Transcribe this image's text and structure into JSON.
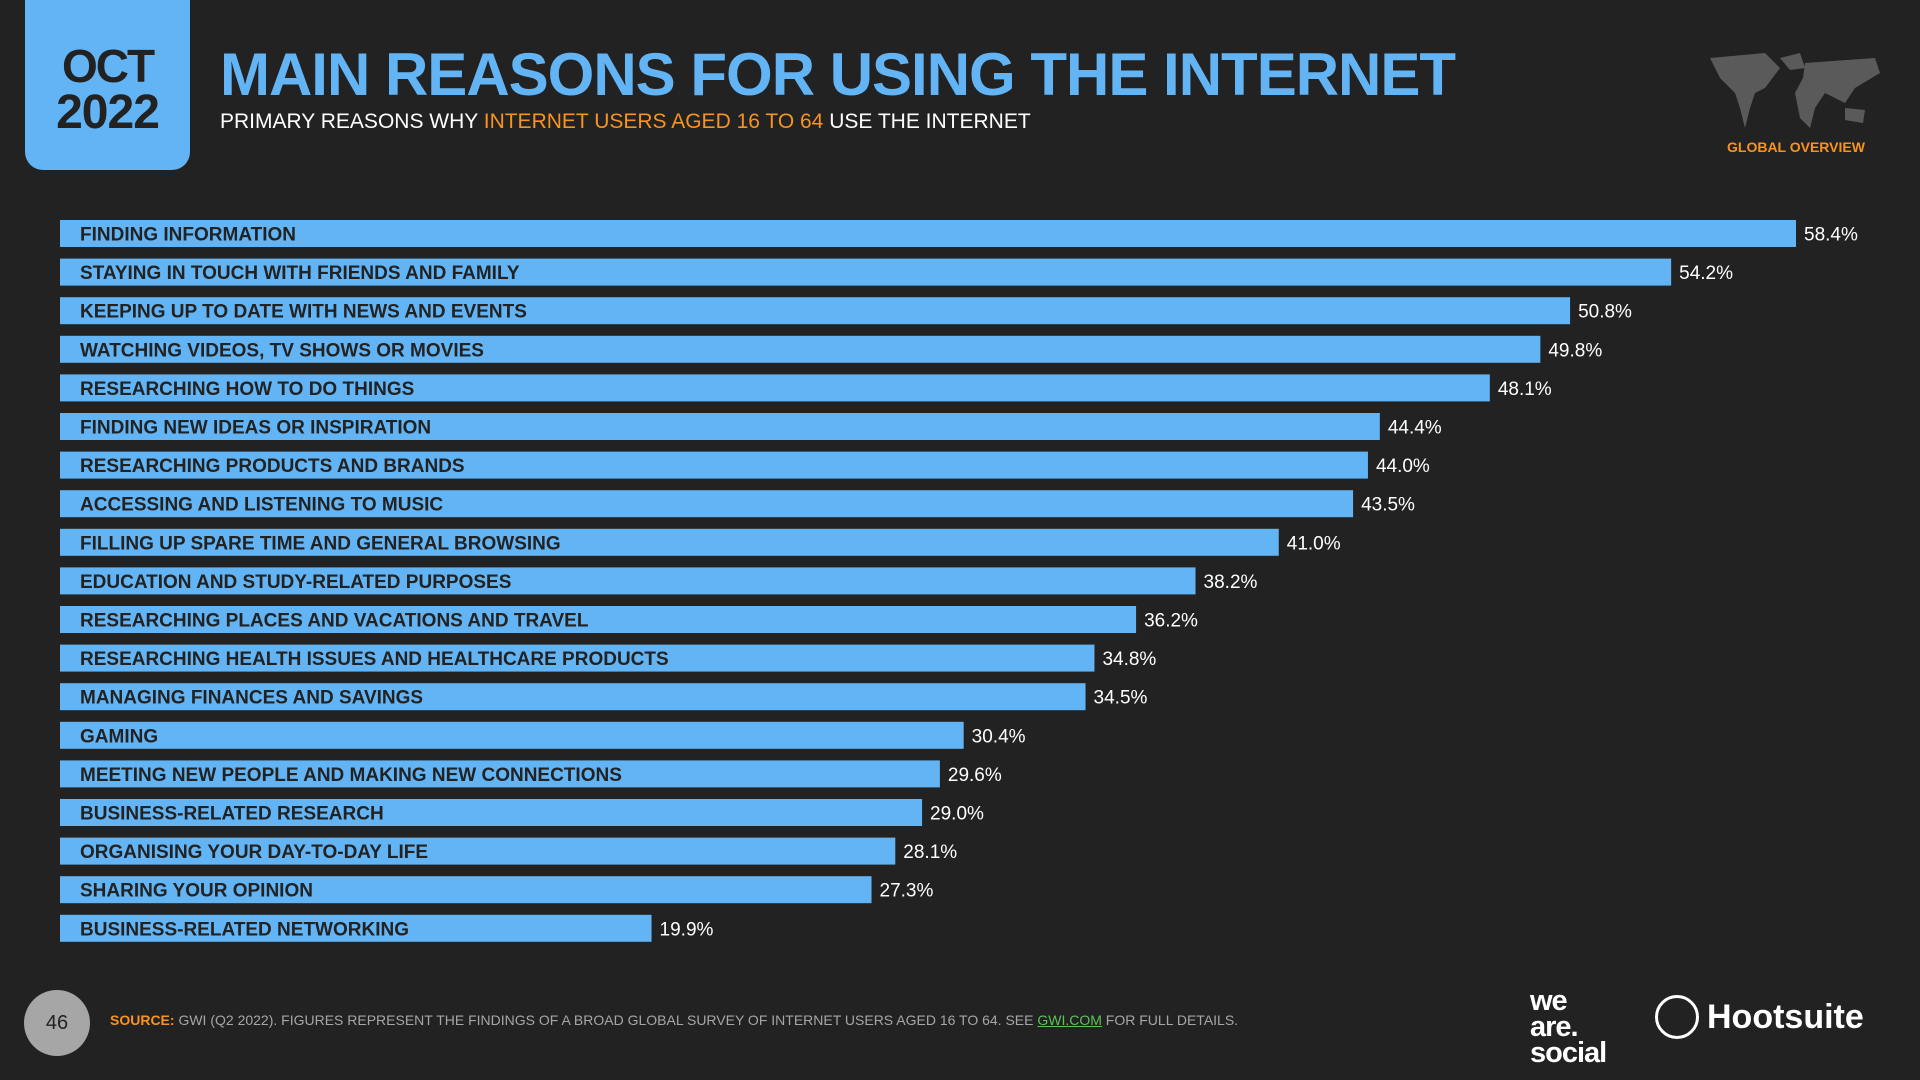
{
  "header": {
    "month": "OCT",
    "year": "2022",
    "title": "MAIN REASONS FOR USING THE INTERNET",
    "subtitle_pre": "PRIMARY REASONS WHY ",
    "subtitle_highlight": "INTERNET USERS AGED 16 TO 64",
    "subtitle_post": " USE THE INTERNET",
    "region": "GLOBAL OVERVIEW"
  },
  "colors": {
    "bar": "#62b4f5",
    "accent": "#f7931e",
    "background": "#222222"
  },
  "chart_data": {
    "type": "bar",
    "orientation": "horizontal",
    "unit": "%",
    "categories": [
      "FINDING INFORMATION",
      "STAYING IN TOUCH WITH FRIENDS AND FAMILY",
      "KEEPING UP TO DATE WITH NEWS AND EVENTS",
      "WATCHING VIDEOS, TV SHOWS OR MOVIES",
      "RESEARCHING HOW TO DO THINGS",
      "FINDING NEW IDEAS OR INSPIRATION",
      "RESEARCHING PRODUCTS AND BRANDS",
      "ACCESSING AND LISTENING TO MUSIC",
      "FILLING UP SPARE TIME AND GENERAL BROWSING",
      "EDUCATION AND STUDY-RELATED PURPOSES",
      "RESEARCHING PLACES AND VACATIONS AND TRAVEL",
      "RESEARCHING HEALTH ISSUES AND HEALTHCARE PRODUCTS",
      "MANAGING FINANCES AND SAVINGS",
      "GAMING",
      "MEETING NEW PEOPLE AND MAKING NEW CONNECTIONS",
      "BUSINESS-RELATED RESEARCH",
      "ORGANISING YOUR DAY-TO-DAY LIFE",
      "SHARING YOUR OPINION",
      "BUSINESS-RELATED NETWORKING"
    ],
    "values": [
      58.4,
      54.2,
      50.8,
      49.8,
      48.1,
      44.4,
      44.0,
      43.5,
      41.0,
      38.2,
      36.2,
      34.8,
      34.5,
      30.4,
      29.6,
      29.0,
      28.1,
      27.3,
      19.9
    ],
    "labels": [
      "58.4%",
      "54.2%",
      "50.8%",
      "49.8%",
      "48.1%",
      "44.4%",
      "44.0%",
      "43.5%",
      "41.0%",
      "38.2%",
      "36.2%",
      "34.8%",
      "34.5%",
      "30.4%",
      "29.6%",
      "29.0%",
      "28.1%",
      "27.3%",
      "19.9%"
    ],
    "xlim": [
      0,
      58.4
    ],
    "grid": false
  },
  "footer": {
    "page": "46",
    "source_label": "SOURCE:",
    "source_text": " GWI (Q2 2022). FIGURES REPRESENT THE FINDINGS OF A BROAD GLOBAL SURVEY OF INTERNET USERS AGED 16 TO 64. SEE ",
    "source_link": "GWI.COM",
    "source_end": " FOR FULL DETAILS.",
    "logo_was": "we are social",
    "logo_hoot": "Hootsuite"
  }
}
